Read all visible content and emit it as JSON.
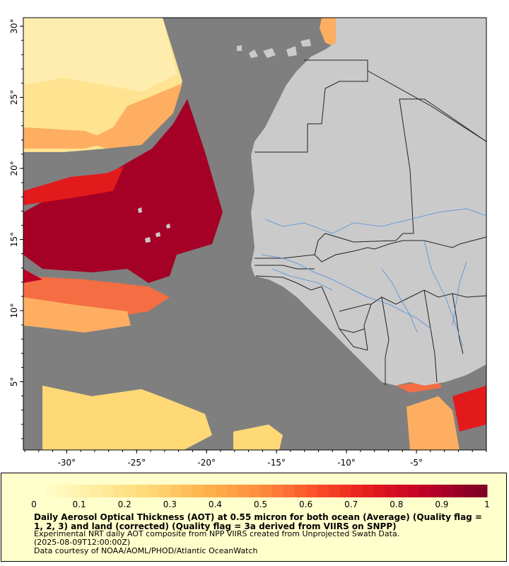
{
  "map": {
    "colors": {
      "background": "#ffffff",
      "ocean": "#7f7f7f",
      "land": "#cacaca",
      "border": "#222222",
      "river": "#4f8fd8",
      "frame": "#000000"
    },
    "lon_ticks": [
      {
        "value": -30,
        "label": "-30°"
      },
      {
        "value": -25,
        "label": "-25°"
      },
      {
        "value": -20,
        "label": "-20°"
      },
      {
        "value": -15,
        "label": "-15°"
      },
      {
        "value": -10,
        "label": "-10°"
      },
      {
        "value": -5,
        "label": "-5°"
      }
    ],
    "lat_ticks": [
      {
        "value": 30,
        "label": "30°"
      },
      {
        "value": 25,
        "label": "25°"
      },
      {
        "value": 20,
        "label": "20°"
      },
      {
        "value": 15,
        "label": "15°"
      },
      {
        "value": 10,
        "label": "10°"
      },
      {
        "value": 5,
        "label": "5°"
      }
    ],
    "lon_range": [
      -33.1,
      0
    ],
    "lat_range": [
      0.2,
      30.6
    ]
  },
  "colorbar": {
    "ticks": [
      "0",
      "0.1",
      "0.2",
      "0.3",
      "0.4",
      "0.5",
      "0.6",
      "0.7",
      "0.8",
      "0.9",
      "1"
    ],
    "colors": [
      "#ffffcc",
      "#ffeda0",
      "#fed976",
      "#feb24c",
      "#fd8d3c",
      "#fc4e2a",
      "#e31a1c",
      "#bd0026",
      "#800026"
    ]
  },
  "legend": {
    "title": "Daily Aerosol Optical Thickness (AOT) at 0.55 micron for both ocean (Average) (Quality flag = 1, 2, 3) and land (corrected) (Quality flag = 3a derived from VIIRS on SNPP)",
    "lines": [
      "Experimental NRT daily AOT composite from NPP VIIRS created from Unprojected Swath Data.",
      "(2025-08-09T12:00:00Z)",
      "Data courtesy of NOAA/AOML/PHOD/Atlantic OceanWatch"
    ]
  }
}
